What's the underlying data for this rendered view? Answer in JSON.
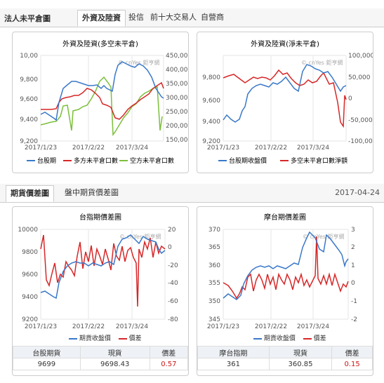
{
  "section1": {
    "title": "法人未平倉圖",
    "tabs": [
      "外資及陸資",
      "投信",
      "前十大交易人",
      "自營商"
    ]
  },
  "section2": {
    "tabs": [
      "期貨價差圖",
      "盤中期貨價差圖"
    ],
    "date": "2017-04-24"
  },
  "watermark": "© cnYes 鉅亨網",
  "colors": {
    "blue": "#3a78c9",
    "red": "#d62728",
    "green": "#7cbf3c"
  },
  "charts": {
    "c1": {
      "title": "外資及陸資(多空未平倉)",
      "left_ticks": [
        "10,00",
        "9,800",
        "9,600",
        "9,400",
        "9,200"
      ],
      "right_ticks": [
        "450,000",
        "400,000",
        "350,000",
        "300,000",
        "250,000",
        "200,000",
        "150,000"
      ],
      "x_ticks": [
        "2017/1/23",
        "2017/2/22",
        "2017/3/24"
      ],
      "legend": [
        "台股期",
        "多方未平倉口數",
        "空方未平倉口數"
      ]
    },
    "c2": {
      "title": "外資及陸資(淨未平倉)",
      "left_ticks": [
        "9,800",
        "9,600",
        "9,400",
        "9,200"
      ],
      "right_ticks": [
        "100,000",
        "50,000",
        "0",
        "-50,000",
        "-100,000"
      ],
      "x_ticks": [
        "2017/1/23",
        "2017/2/22",
        "2017/3/24"
      ],
      "legend": [
        "台股期收盤價",
        "多空未平倉口數淨額"
      ]
    },
    "c3": {
      "title": "台指期價差圖",
      "left_ticks": [
        "10000",
        "9800",
        "9600",
        "9400",
        "9200"
      ],
      "right_ticks": [
        "20",
        "0",
        "-20",
        "-40",
        "-60",
        "-80"
      ],
      "x_ticks": [
        "2017/1/23",
        "2017/2/22",
        "2017/3/24"
      ],
      "legend": [
        "期貨收盤價",
        "價差"
      ]
    },
    "c4": {
      "title": "摩台期價差圖",
      "left_ticks": [
        "370",
        "365",
        "360",
        "355",
        "350",
        "345"
      ],
      "right_ticks": [
        "3",
        "2",
        "1",
        "0",
        "-1",
        "-2"
      ],
      "x_ticks": [
        "2017/1/23",
        "2017/2/22",
        "2017/3/24"
      ],
      "legend": [
        "期貨收盤價",
        "價差"
      ]
    }
  },
  "tables": {
    "t1": {
      "headers": [
        "台股期貨",
        "現貨",
        "價差"
      ],
      "values": [
        "9699",
        "9698.43",
        "0.57"
      ]
    },
    "t2": {
      "headers": [
        "摩台指期",
        "現貨",
        "價差"
      ],
      "values": [
        "361",
        "360.85",
        "0.15"
      ]
    }
  }
}
